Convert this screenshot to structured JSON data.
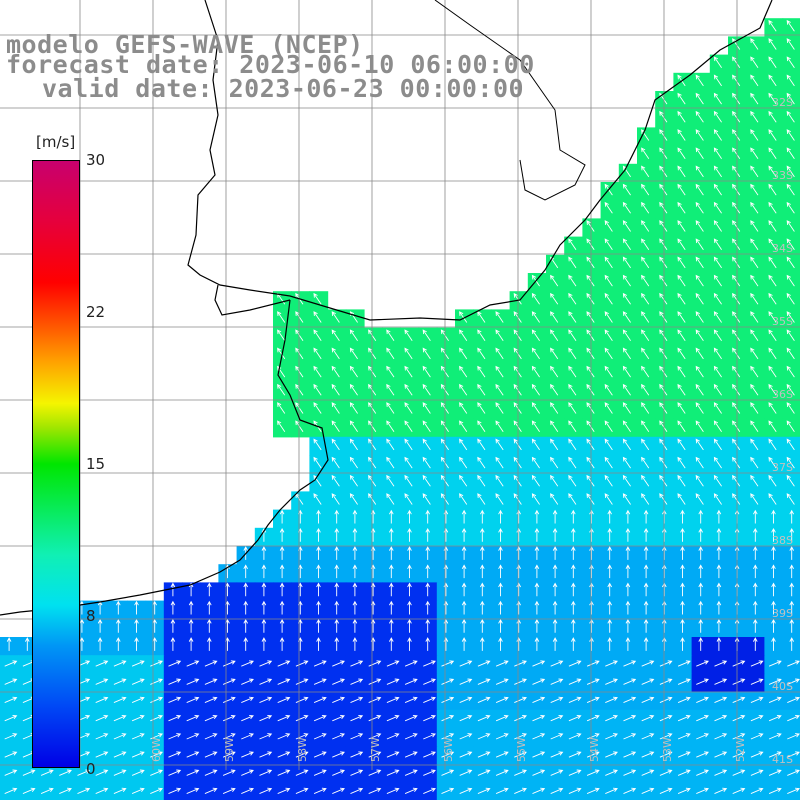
{
  "title": {
    "line1": "modelo GEFS-WAVE (NCEP)",
    "line2": "forecast date: 2023-06-10 06:00:00",
    "line3": "valid date: 2023-06-23 00:00:00"
  },
  "colorbar": {
    "unit": "[m/s]",
    "ticks": [
      "30",
      "22",
      "15",
      "8",
      "0"
    ]
  },
  "lat_labels": [
    "32S",
    "33S",
    "34S",
    "35S",
    "36S",
    "37S",
    "38S",
    "39S",
    "40S",
    "41S"
  ],
  "lon_labels": [
    "60W",
    "59W",
    "58W",
    "57W",
    "56W",
    "55W",
    "54W",
    "53W",
    "52W"
  ],
  "colors": {
    "land": "#ffffff",
    "grid": "#808080",
    "coast": "#000000",
    "arrow": "#ffffff",
    "low_wind": "#0028f0",
    "mid_wind": "#00e6e6",
    "high_wind": "#10f070"
  }
}
